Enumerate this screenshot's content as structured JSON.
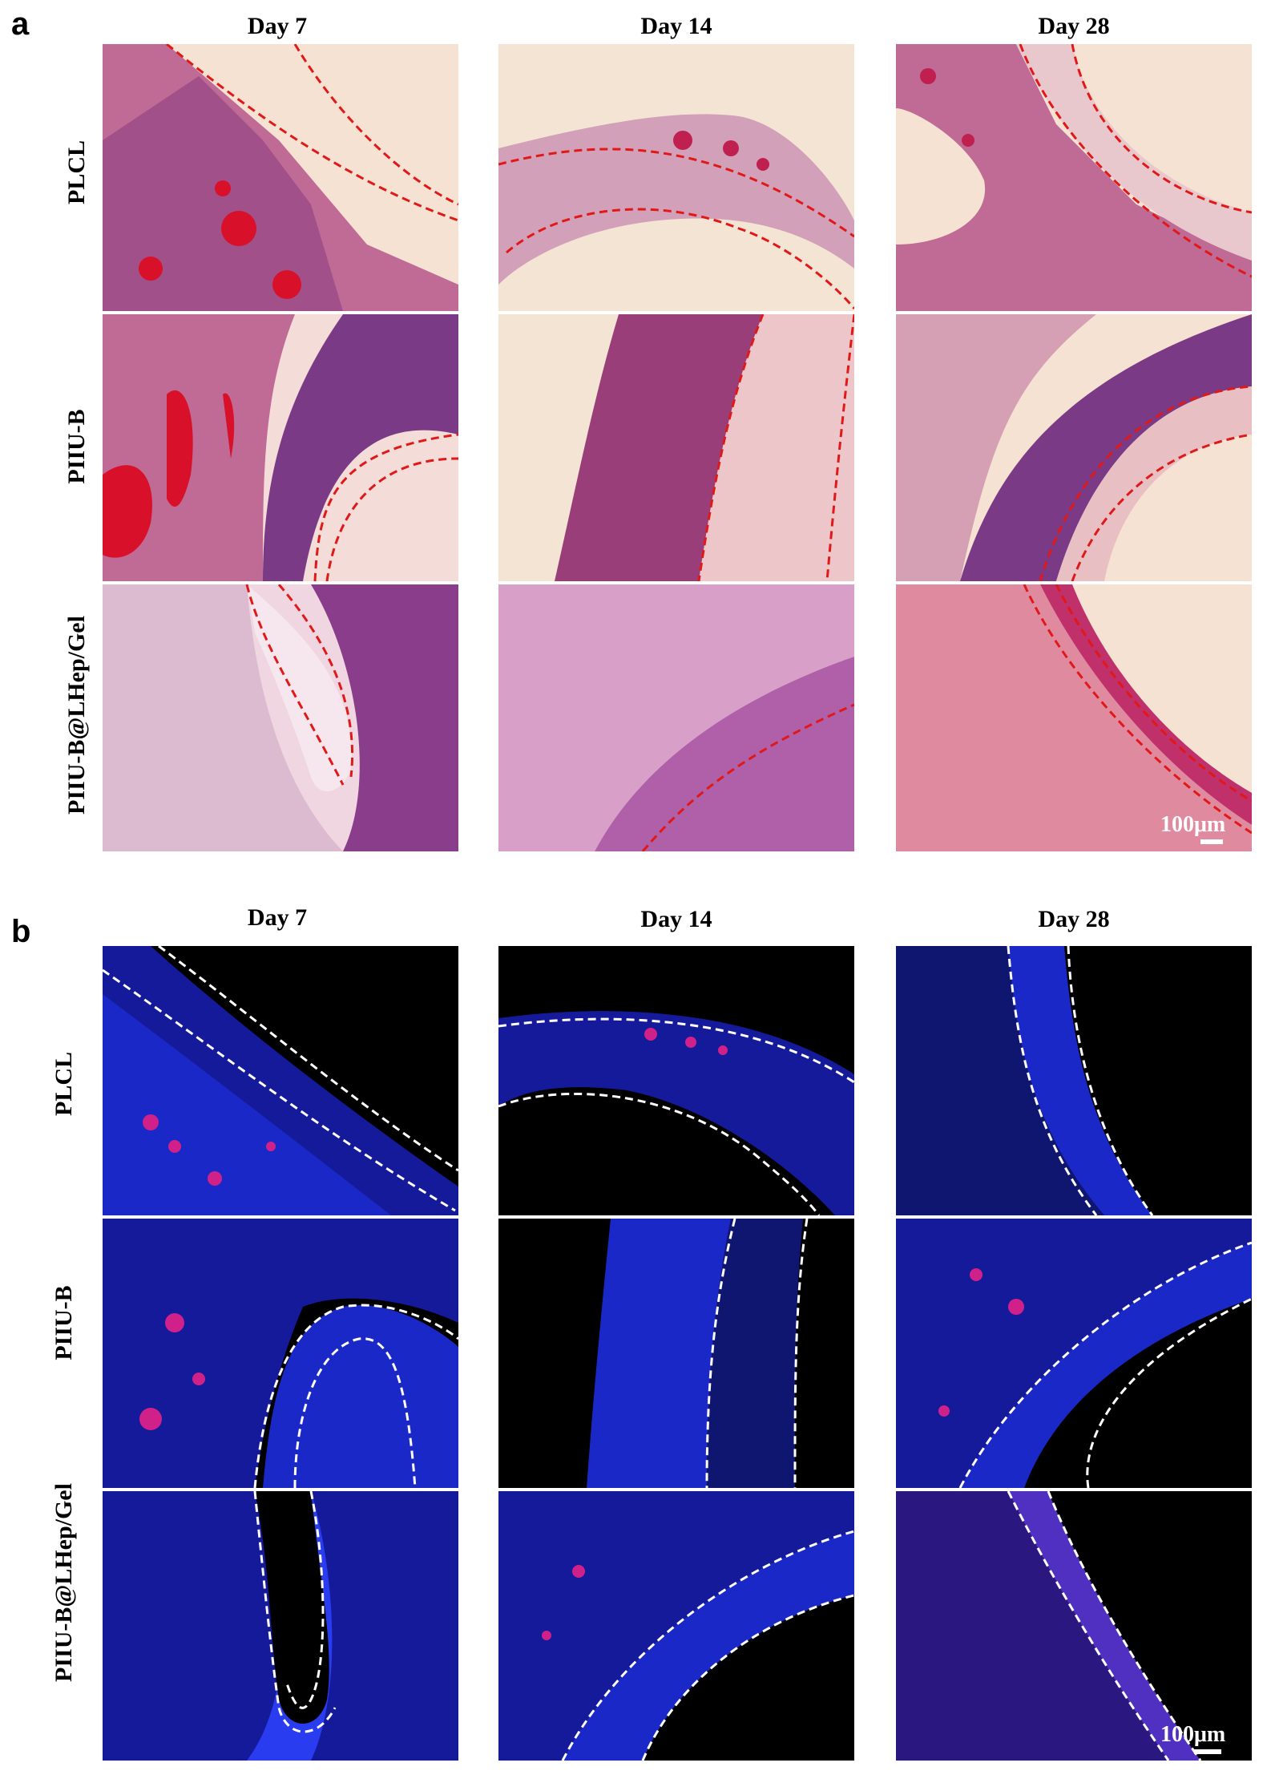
{
  "panels": [
    {
      "letter": "a",
      "columns": [
        "Day 7",
        "Day 14",
        "Day 28"
      ],
      "rows": [
        "PLCL",
        "PIIU-B",
        "PIIU-B@LHep/Gel"
      ],
      "scale_label": "100μm",
      "colors": {
        "background": "#f6e2d2",
        "tissue": "#c85a8c",
        "dense": "#8a3d7a",
        "vessel": "#d8102a",
        "outline": "#e01818"
      }
    },
    {
      "letter": "b",
      "columns": [
        "Day 7",
        "Day 14",
        "Day 28"
      ],
      "rows": [
        "PLCL",
        "PIIU-B",
        "PIIU-B@LHep/Gel"
      ],
      "scale_label": "100μm",
      "colors": {
        "background": "#000000",
        "tissue": "#1a28c8",
        "signal": "#d0208a",
        "outline": "#ffffff"
      }
    }
  ]
}
